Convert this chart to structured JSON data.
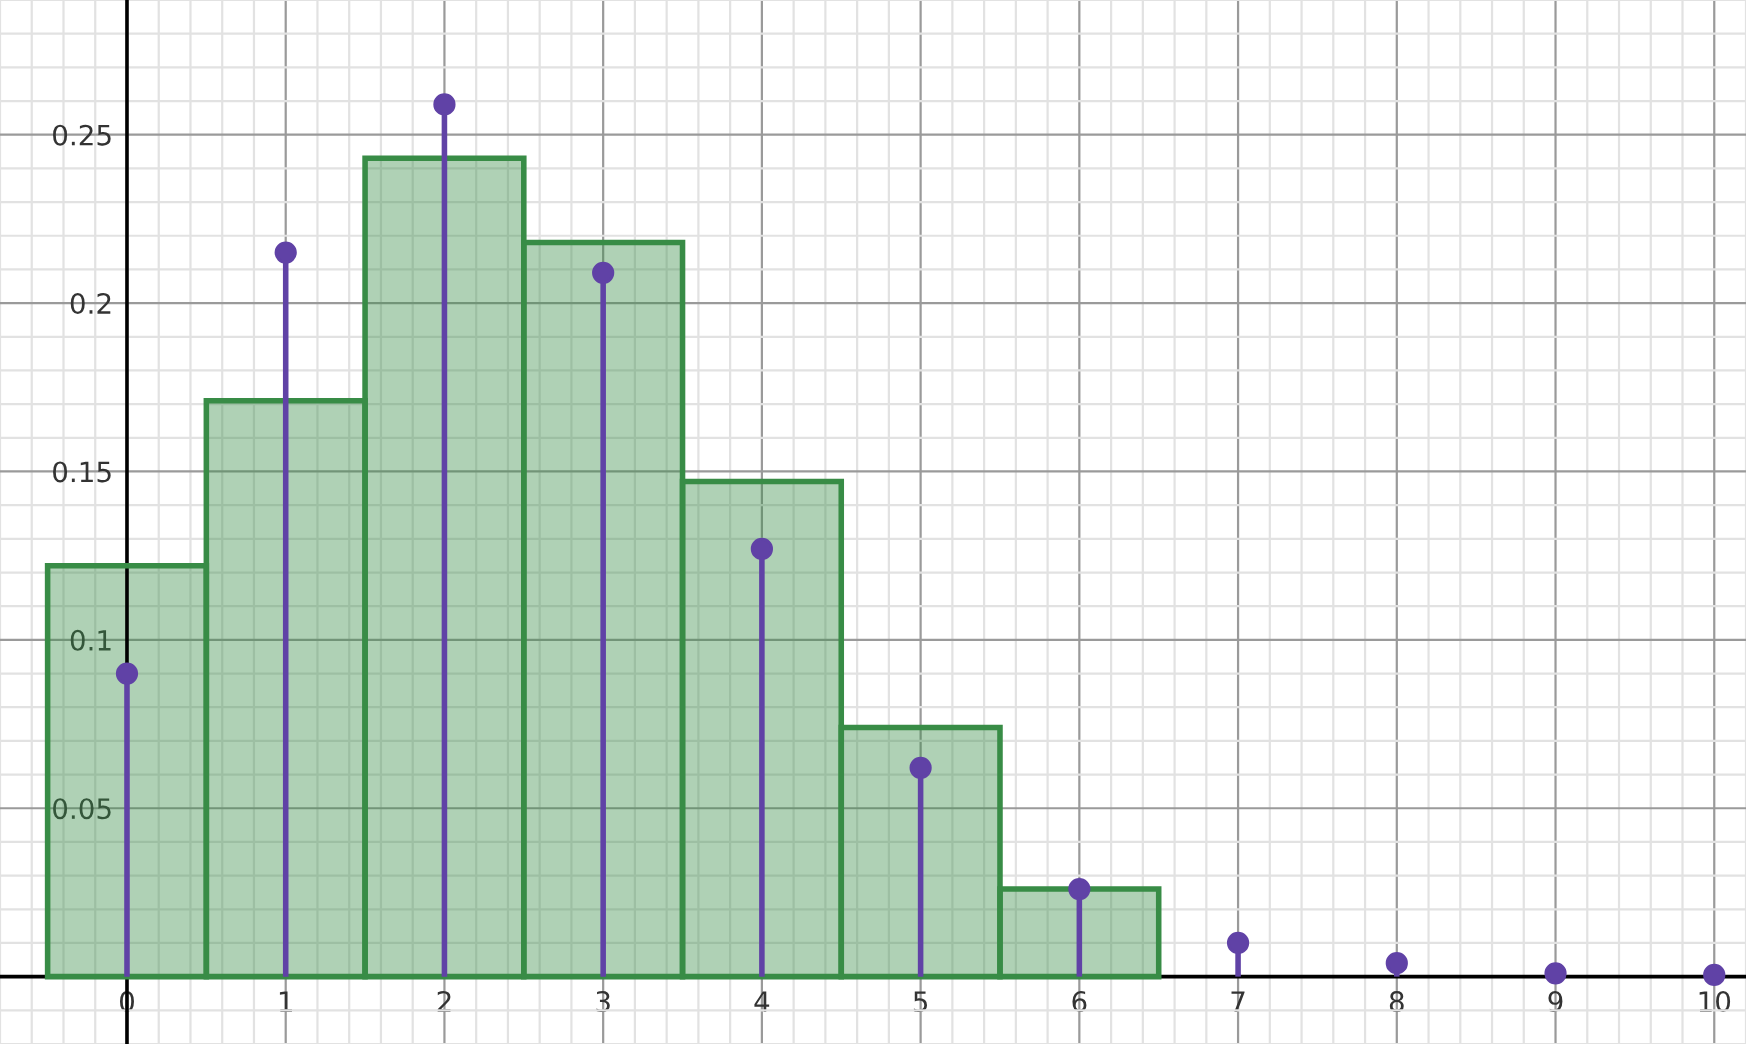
{
  "chart_data": {
    "type": "histogram",
    "xlim": [
      -0.775,
      10.2
    ],
    "ylim": [
      -0.0194,
      0.29
    ],
    "xticks": [
      0,
      1,
      2,
      3,
      4,
      5,
      6,
      7,
      8,
      9,
      10
    ],
    "yticks": [
      0.05,
      0.1,
      0.15,
      0.2,
      0.25
    ],
    "grid": true,
    "series": [
      {
        "type": "histogram",
        "color": "#388c46",
        "bins": [
          -0.5,
          0.5,
          1.5,
          2.5,
          3.5,
          4.5,
          5.5,
          6.5
        ],
        "values": [
          0.122,
          0.171,
          0.243,
          0.218,
          0.147,
          0.074,
          0.026
        ]
      },
      {
        "type": "lollipop",
        "color": "#6042a6",
        "marker": "circle",
        "x": [
          0,
          1,
          2,
          3,
          4,
          5,
          6,
          7,
          8,
          9,
          10
        ],
        "values": [
          0.09,
          0.215,
          0.259,
          0.209,
          0.127,
          0.062,
          0.026,
          0.01,
          0.004,
          0.001,
          0.0005
        ]
      }
    ]
  }
}
